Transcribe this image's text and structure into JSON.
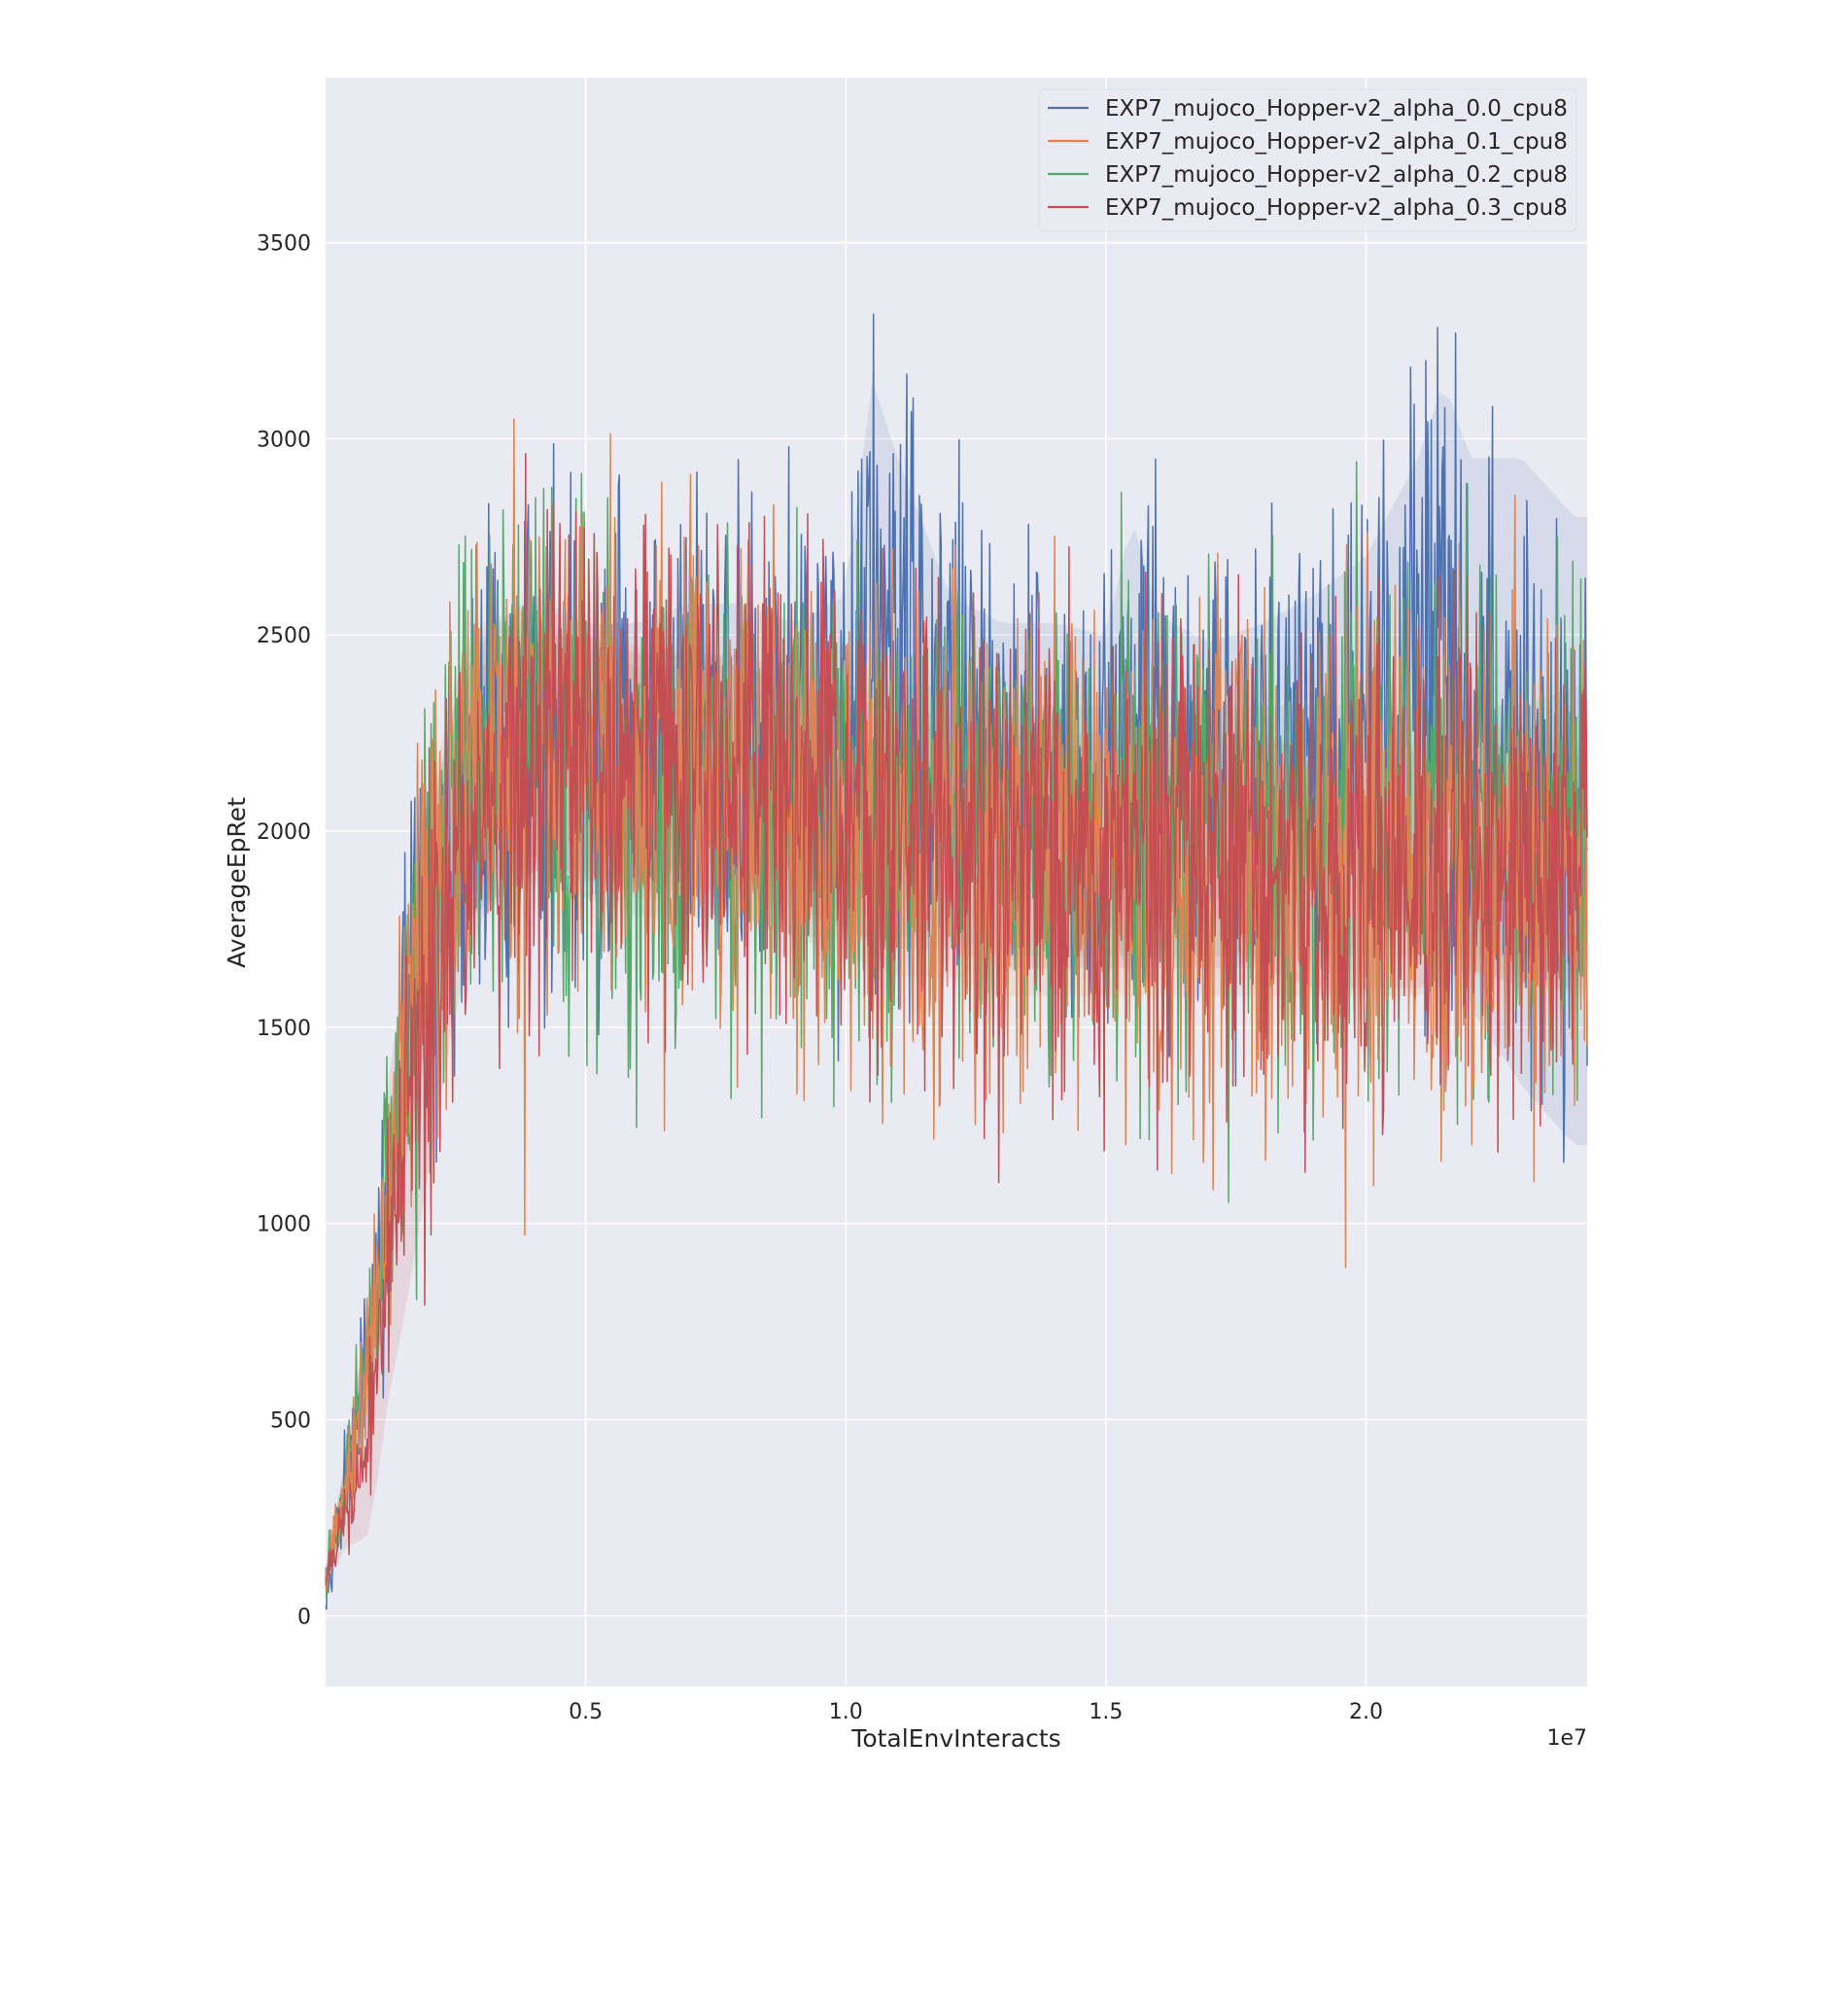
{
  "chart_data": {
    "type": "line",
    "title": "",
    "xlabel": "TotalEnvInteracts",
    "ylabel": "AverageEpRet",
    "x_offset_label": "1e7",
    "x_scale": 10000000.0,
    "xlim": [
      0,
      2.425
    ],
    "ylim": [
      -180,
      3920
    ],
    "x_ticks": [
      0.5,
      1.0,
      1.5,
      2.0
    ],
    "x_tick_labels": [
      "0.5",
      "1.0",
      "1.5",
      "2.0"
    ],
    "y_ticks": [
      0,
      500,
      1000,
      1500,
      2000,
      2500,
      3000,
      3500
    ],
    "y_tick_labels": [
      "0",
      "500",
      "1000",
      "1500",
      "2000",
      "2500",
      "3000",
      "3500"
    ],
    "grid": true,
    "legend_position": "top-right",
    "series": [
      {
        "name": "EXP7_mujoco_Hopper-v2_alpha_0.0_cpu8",
        "color": "#4c72b0",
        "x": [
          0.0,
          0.05,
          0.1,
          0.15,
          0.2,
          0.25,
          0.3,
          0.4,
          0.5,
          0.6,
          0.7,
          0.8,
          0.9,
          1.0,
          1.05,
          1.1,
          1.2,
          1.3,
          1.4,
          1.5,
          1.55,
          1.6,
          1.7,
          1.8,
          1.9,
          2.0,
          2.1,
          2.15,
          2.2,
          2.3,
          2.4
        ],
        "y": [
          80,
          400,
          800,
          1350,
          1750,
          2050,
          2150,
          2250,
          2200,
          2200,
          2250,
          2250,
          2200,
          2250,
          2650,
          2500,
          2250,
          2200,
          2200,
          2150,
          2200,
          2150,
          2150,
          2200,
          2250,
          2300,
          2400,
          2500,
          2250,
          2150,
          2000
        ],
        "spread": [
          30,
          80,
          150,
          250,
          300,
          300,
          330,
          320,
          300,
          300,
          300,
          300,
          300,
          310,
          380,
          350,
          300,
          300,
          300,
          300,
          400,
          320,
          300,
          300,
          300,
          320,
          360,
          380,
          340,
          350,
          380
        ],
        "band": [
          40,
          80,
          150,
          200,
          250,
          300,
          350,
          350,
          330,
          330,
          330,
          330,
          330,
          350,
          500,
          450,
          350,
          330,
          330,
          350,
          600,
          400,
          330,
          330,
          350,
          400,
          550,
          650,
          700,
          800,
          800
        ]
      },
      {
        "name": "EXP7_mujoco_Hopper-v2_alpha_0.1_cpu8",
        "color": "#dd8452",
        "x": [
          0.0,
          0.05,
          0.1,
          0.15,
          0.2,
          0.25,
          0.3,
          0.4,
          0.5,
          0.6,
          0.7,
          0.8,
          0.9,
          1.0,
          1.1,
          1.2,
          1.3,
          1.4,
          1.5,
          1.6,
          1.7,
          1.8,
          1.9,
          2.0,
          2.1,
          2.2,
          2.3,
          2.4
        ],
        "y": [
          80,
          400,
          850,
          1400,
          1800,
          2100,
          2200,
          2250,
          2200,
          2150,
          2150,
          2100,
          2050,
          2000,
          1950,
          1950,
          1900,
          1900,
          1900,
          1900,
          1900,
          1900,
          1900,
          1900,
          1900,
          1950,
          1950,
          1900
        ],
        "spread": [
          30,
          80,
          150,
          250,
          300,
          330,
          340,
          330,
          320,
          320,
          320,
          320,
          320,
          320,
          320,
          320,
          320,
          320,
          320,
          320,
          320,
          320,
          320,
          320,
          320,
          320,
          320,
          320
        ],
        "band": [
          40,
          80,
          150,
          220,
          280,
          300,
          330,
          330,
          320,
          320,
          320,
          320,
          320,
          320,
          320,
          320,
          320,
          320,
          320,
          320,
          320,
          320,
          320,
          320,
          320,
          320,
          320,
          320
        ]
      },
      {
        "name": "EXP7_mujoco_Hopper-v2_alpha_0.2_cpu8",
        "color": "#55a868",
        "x": [
          0.0,
          0.05,
          0.1,
          0.15,
          0.2,
          0.25,
          0.3,
          0.4,
          0.5,
          0.6,
          0.7,
          0.8,
          0.9,
          1.0,
          1.1,
          1.2,
          1.3,
          1.4,
          1.5,
          1.6,
          1.7,
          1.8,
          1.9,
          2.0,
          2.1,
          2.2,
          2.3,
          2.4
        ],
        "y": [
          80,
          420,
          800,
          1350,
          1750,
          2050,
          2150,
          2200,
          2150,
          2100,
          2100,
          2100,
          2050,
          2050,
          2050,
          2050,
          2000,
          2000,
          2000,
          2000,
          2000,
          2000,
          2000,
          2000,
          2000,
          2000,
          2000,
          2050
        ],
        "spread": [
          30,
          80,
          150,
          250,
          300,
          330,
          330,
          320,
          320,
          320,
          320,
          320,
          320,
          320,
          320,
          320,
          320,
          320,
          320,
          320,
          320,
          320,
          320,
          320,
          320,
          320,
          320,
          320
        ],
        "band": [
          40,
          80,
          150,
          220,
          280,
          300,
          330,
          330,
          320,
          320,
          320,
          320,
          320,
          320,
          320,
          320,
          320,
          320,
          320,
          320,
          320,
          320,
          320,
          320,
          320,
          320,
          320,
          320
        ]
      },
      {
        "name": "EXP7_mujoco_Hopper-v2_alpha_0.3_cpu8",
        "color": "#c44e52",
        "x": [
          0.0,
          0.03,
          0.05,
          0.08,
          0.1,
          0.12,
          0.15,
          0.2,
          0.25,
          0.3,
          0.4,
          0.5,
          0.6,
          0.7,
          0.8,
          0.9,
          1.0,
          1.1,
          1.2,
          1.3,
          1.4,
          1.5,
          1.6,
          1.7,
          1.8,
          1.9,
          2.0,
          2.1,
          2.2,
          2.3,
          2.4
        ],
        "y": [
          80,
          250,
          280,
          400,
          650,
          950,
          1200,
          1550,
          1900,
          2100,
          2200,
          2200,
          2150,
          2150,
          2150,
          2100,
          2050,
          2000,
          2000,
          1950,
          1950,
          1950,
          1950,
          1950,
          1950,
          1900,
          1900,
          1900,
          1950,
          1900,
          1900
        ],
        "spread": [
          30,
          40,
          50,
          80,
          100,
          150,
          200,
          250,
          300,
          300,
          300,
          300,
          300,
          300,
          300,
          300,
          300,
          300,
          300,
          300,
          300,
          300,
          300,
          300,
          300,
          300,
          300,
          300,
          300,
          300,
          300
        ],
        "band": [
          40,
          80,
          100,
          200,
          300,
          400,
          450,
          400,
          350,
          320,
          300,
          300,
          300,
          300,
          300,
          300,
          300,
          300,
          300,
          300,
          300,
          300,
          300,
          300,
          300,
          300,
          300,
          300,
          300,
          300,
          300
        ]
      }
    ]
  }
}
